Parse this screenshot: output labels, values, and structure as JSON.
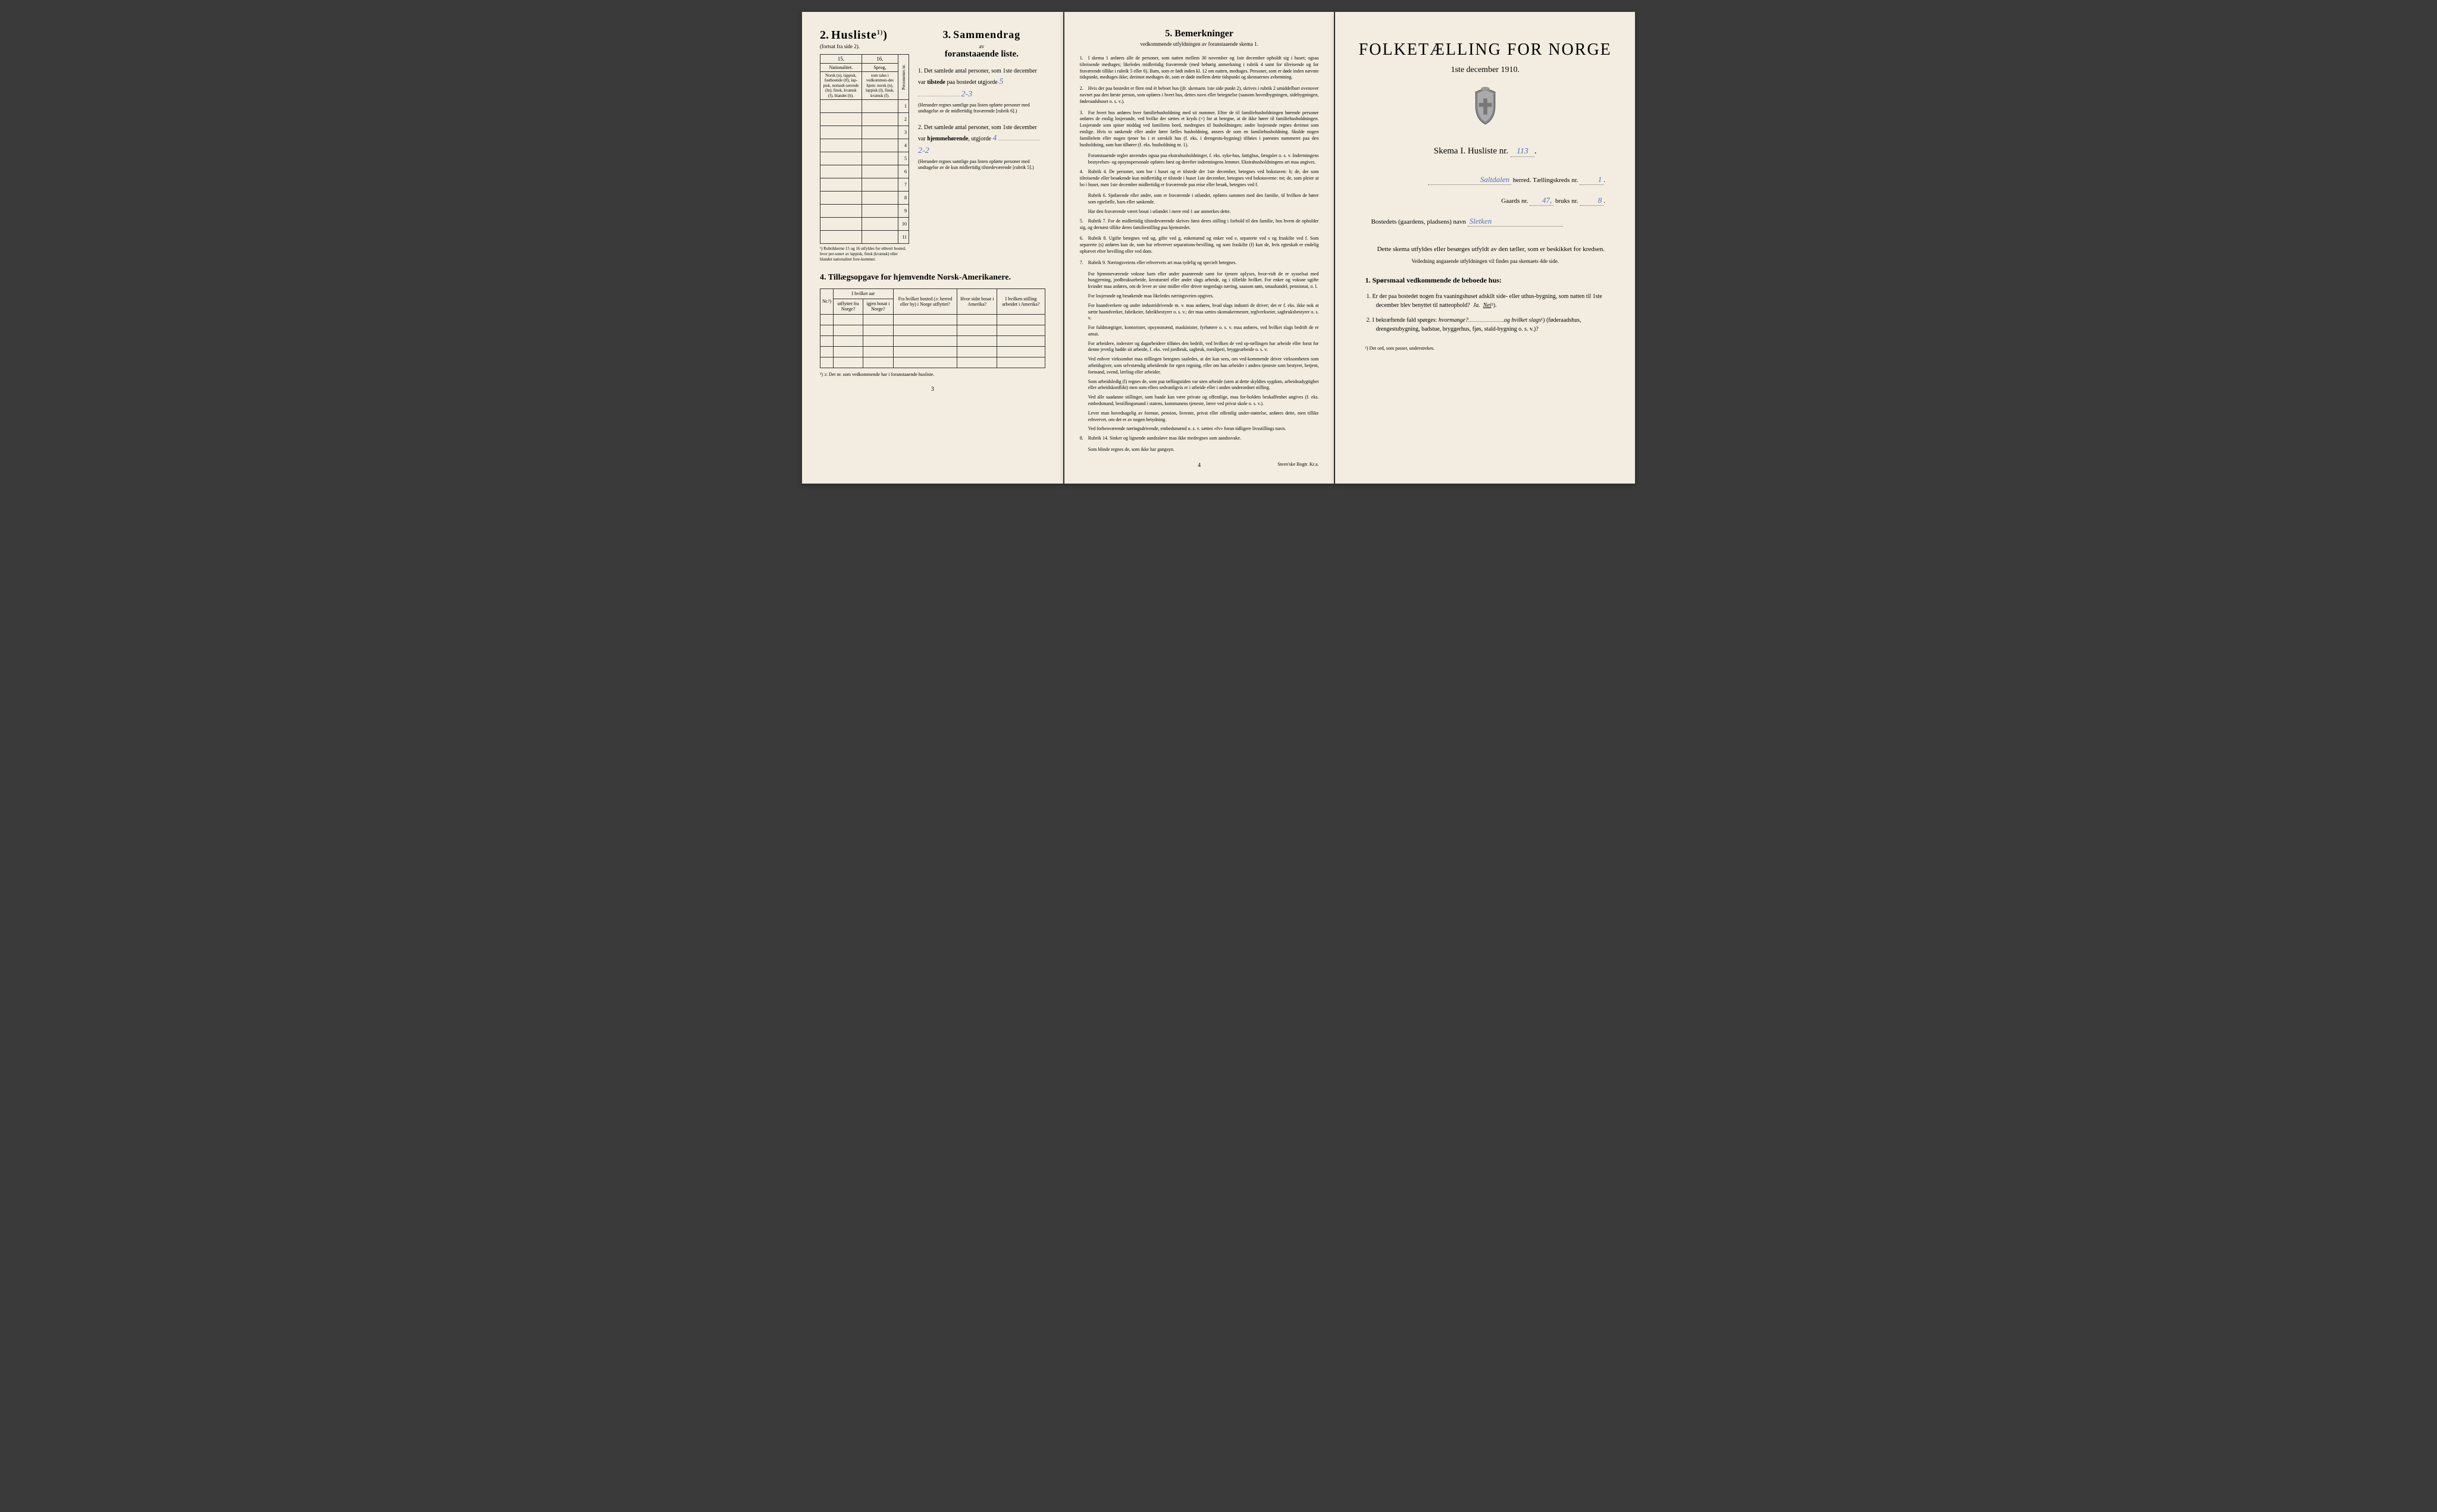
{
  "leftPage": {
    "husliste": {
      "num": "2.",
      "title": "Husliste",
      "sup": "1)",
      "sub": "(fortsat fra side 2)."
    },
    "smallTable": {
      "col15": "15.",
      "col16": "16.",
      "head15": "Nationalitet.",
      "head16": "Sprog,",
      "sub15": "Norsk (n), lappisk, fastboende (lf), lap-pisk, nomadi-serende (ln), finsk, kvænsk (f), blandet (b).",
      "sub16": "som tales i vedkommen-des hjem: norsk (n), lappisk (l), finsk, kvænsk (f).",
      "rotatedLabel": "Personernes nr.",
      "rows": [
        "1",
        "2",
        "3",
        "4",
        "5",
        "6",
        "7",
        "8",
        "9",
        "10",
        "11"
      ],
      "footnote": "¹) Rubrikkerne 15 og 16 utfyldes for ethvert bosted, hvor per-soner av lappisk, finsk (kvænsk) eller blandet nationalitet fore-kommer."
    },
    "sammendrag": {
      "num": "3.",
      "word": "Sammendrag",
      "av": "av",
      "sub": "foranstaaende liste.",
      "item1": {
        "num": "1.",
        "text": "Det samlede antal personer, som 1ste december var",
        "bold": "tilstede",
        "cont": "paa bostedet utgjorde",
        "fill1": "5",
        "fill2": "2-3",
        "paren": "(Herunder regnes samtlige paa listen opførte personer med undtagelse av de midlertidig fraværende [rubrik 6].)"
      },
      "item2": {
        "num": "2.",
        "text": "Det samlede antal personer, som 1ste december var",
        "bold": "hjemmehørende",
        "cont": ", utgjorde",
        "fill1": "4",
        "fill2": "2-2",
        "paren": "(Herunder regnes samtlige paa listen opførte personer med undtagelse av de kun midlertidig tilstedeværende [rubrik 5].)"
      }
    },
    "section4": {
      "title": "4. Tillægsopgave for hjemvendte Norsk-Amerikanere.",
      "headers": {
        "nr": "Nr.²)",
        "aar": "I hvilket aar",
        "utflyttet": "utflyttet fra Norge?",
        "igjen": "igjen bosat i Norge?",
        "fra": "Fra hvilket bosted (ɔ: herred eller by) i Norge utflyttet?",
        "hvor": "Hvor sidst bosat i Amerika?",
        "stilling": "I hvilken stilling arbeidet i Amerika?"
      },
      "footnote": "²) ɔ: Det nr. som vedkommende har i foranstaaende husliste."
    },
    "pageNum": "3"
  },
  "middlePage": {
    "title": "5. Bemerkninger",
    "sub": "vedkommende utfyldningen av foranstaaende skema 1.",
    "items": [
      {
        "n": "1.",
        "t": "I skema 1 anføres alle de personer, som natten mellem 30 november og 1ste december opholdt sig i huset; ogsaa tilreisende medtages; likeledes midlertidig fraværende (med behørig anmerkning i rubrik 4 samt for tilreisende og for fraværende tillike i rubrik 5 eller 6). Barn, som er født inden kl. 12 om natten, medtages. Personer, som er døde inden nævnte tidspunkt, medtages ikke; derimot medtages de, som er døde mellem dette tidspunkt og skemaernes avhentning."
      },
      {
        "n": "2.",
        "t": "Hvis der paa bostedet er flere end ét beboet hus (jfr. skemaets 1ste side punkt 2), skrives i rubrik 2 umiddelbart ovenover navnet paa den første person, som opføres i hvert hus, dettes navn eller betegnelse (saasom hovedbygningen, sidebygningen, føderaadshuset o. s. v.)."
      },
      {
        "n": "3.",
        "t": "For hvert hus anføres hver familiehusholdning med sit nummer. Efter de til familiehusholdningen hørende personer anføres de enslig losjerande, ved hvilke der sættes et kryds (×) for at betegne, at de ikke hører til familiehusholdningen. Losjerande som spiser middag ved familiens bord, medregnes til husholdningen; andre losjerande regnes derimot som enslige. Hvis to søskende eller andre fører fælles husholdning, ansees de som en familiehusholdning. Skulde nogen familielem eller nogen tjener bo i et særskilt hus (f. eks. i drengestu-bygning) tilføies i parentes nummeret paa den husholdning, som han tilhører (f. eks. husholdning nr. 1)."
      }
    ],
    "indent3": [
      "Foranstaaende regler anvendes ogsaa paa ekstrahusholdninger, f. eks. syke-hus, fattighus, fængsler o. s. v. Indretningens bestyrelses- og opsynspersonale opføres først og derefter indretningens lemmer. Ekstrahusholdningens art maa angives."
    ],
    "items2": [
      {
        "n": "4.",
        "t": "Rubrik 4. De personer, som bor i huset og er tilstede der 1ste december, betegnes ved bokstaven: b; de, der som tilreisende eller besøkende kun midlertidig er tilstede i huset 1ste december, betegnes ved bokstaverne: mt; de, som pleier at bo i huset, men 1ste december midlertidig er fraværende paa reise eller besøk, betegnes ved f."
      }
    ],
    "indent4": [
      "Rubrik 6. Sjøfarende eller andre, som er fraværende i utlandet, opføres sammen med den familie, til hvilken de hører som egtefælle, barn eller søskende.",
      "Har den fraværende været bosat i utlandet i mere end 1 aar anmerkes dette."
    ],
    "items3": [
      {
        "n": "5.",
        "t": "Rubrik 7. For de midlertidig tilstedeværende skrives først deres stilling i forhold til den familie, hos hvem de opholder sig, og dernæst tillike deres familiestilling paa hjemstedet."
      },
      {
        "n": "6.",
        "t": "Rubrik 8. Ugifte betegnes ved ug, gifte ved g, enkemænd og enker ved e, separerte ved s og fraskilte ved f. Som separerte (s) anføres kun de, som har erhvervet separations-bevilling, og som fraskilte (f) kun de, hvis egteskab er endelig ophævet efter bevilling eller ved dom."
      },
      {
        "n": "7.",
        "t": "Rubrik 9. Næringsveiens eller erhvervets art maa tydelig og specielt betegnes."
      }
    ],
    "indent7": [
      "For hjemmeværende voksne barn eller andre paarørende samt for tjenere oplyses, hvor-vidt de er sysselsat med husgjerning, jordbruksarbeide, kreaturstel eller andet slags arbeide, og i tilfælde hvilket. For enker og voksne ugifte kvinder maa anføres, om de lever av sine midler eller driver nogenlags næring, saasom søm, smaahandel, pensionat, o. l.",
      "For losjerande og besøkende maa likeledes næringsveien opgives.",
      "For haandverkere og andre industridrivende m. v. maa anføres, hvad slags industri de driver; det er f. eks. ikke nok at sætte haandverker, fabrikeier, fabrikbestyrer o. s. v.; der maa sættes skomaker­mester, teglverkseier, sagbruksbestyrer o. s. v.",
      "For fuldmægtiger, kontorister, opsynsmænd, maskinister, fyrbøtere o. s. v. maa anføres, ved hvilket slags bedrift de er ansat.",
      "For arbeidere, inderster og dagarbeidere tilføies den bedrift, ved hvilken de ved op-tællingen har arbeide eller forut for denne jevnlig hadde sit arbeide, f. eks. ved jordbruk, sagbruk, træsliperi, bryggearbeide o. s. v.",
      "Ved enhver virksomhet maa stillingen betegnes saaledes, at det kan sees, om ved-kommende driver virksomheten som arbeidsgiver, som selvstændig arbeidende for egen regning, eller om han arbeider i andres tjeneste som bestyrer, betjent, formand, svend, lærling eller arbeider.",
      "Som arbeidsledig (l) regnes de, som paa tællingstiden var uten arbeide (uten at dette skyldtes sygdom, arbeidsudygtighet eller arbeidskonflikt) men som ellers sedvanligvis er i arbeide eller i anden underordnet stilling.",
      "Ved alle saadanne stillinger, som baade kan være private og offentlige, maa for-holdets beskaffenhet angives (f. eks. embedsmand, bestillingsmand i statens, kommunens tjeneste, lærer ved privat skole o. s. v.).",
      "Lever man hovedsagelig av formue, pension, livrente, privat eller offentlig under-støttelse, anføres dette, men tillike erhvervet, om det er av nogen betydning.",
      "Ved forhenværende næringsdrivende, embedsmænd o. s. v. sættes «fv» foran tidligere livsstillings navn."
    ],
    "items4": [
      {
        "n": "8.",
        "t": "Rubrik 14. Sinker og lignende aandssløve maa ikke medregnes som aandssvake."
      }
    ],
    "indent8": [
      "Som blinde regnes de, som ikke har gangsyn."
    ],
    "pageNum": "4",
    "printer": "Steen'ske Bogtr. Kr.a."
  },
  "rightPage": {
    "title": "FOLKETÆLLING FOR NORGE",
    "date": "1ste december 1910.",
    "skema": {
      "label": "Skema I.  Husliste nr.",
      "val": "113"
    },
    "herred": {
      "val": "Saltdalen",
      "label": "herred.  Tællingskreds nr.",
      "val2": "1"
    },
    "gaard": {
      "label": "Gaards nr.",
      "val": "47,",
      "label2": "bruks nr.",
      "val2": "8"
    },
    "bosted": {
      "label": "Bostedets (gaardens, pladsens) navn",
      "val": "Sletken"
    },
    "intro": "Dette skema utfyldes eller besørges utfyldt av den tæller, som er beskikket for kredsen.",
    "introSub": "Veiledning angaaende utfyldningen vil findes paa skemaets 4de side.",
    "sporsmalHeader": "1. Spørsmaal vedkommende de beboede hus:",
    "q1": {
      "n": "1.",
      "t": "Er der paa bostedet nogen fra vaaningshuset adskilt side- eller uthus-bygning, som natten til 1ste december blev benyttet til natteophold?",
      "ja": "Ja.",
      "nei": "Nei",
      "sup": "¹)."
    },
    "q2": {
      "n": "2.",
      "t": "I bekræftende fald spørges:",
      "em1": "hvormange?",
      "em2": "og hvilket slags",
      "sup": "¹)",
      "cont": "(føderaadshus, drengestubygning, badstue, bryggerhus, fjøs, stald-bygning o. s. v.)?"
    },
    "footnote": "¹) Det ord, som passer, understrekes."
  }
}
